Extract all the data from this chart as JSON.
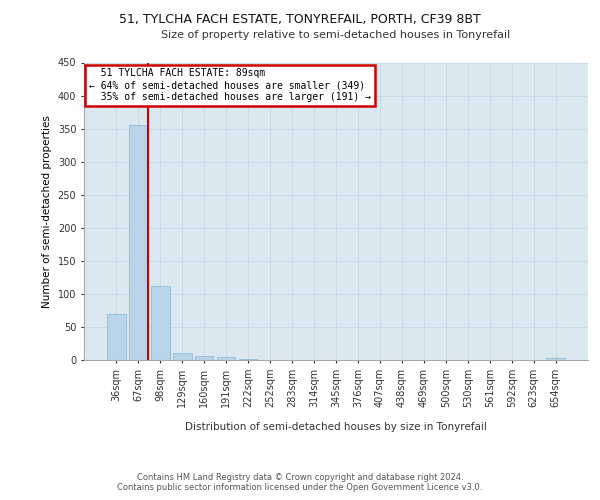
{
  "title": "51, TYLCHA FACH ESTATE, TONYREFAIL, PORTH, CF39 8BT",
  "subtitle": "Size of property relative to semi-detached houses in Tonyrefail",
  "xlabel": "Distribution of semi-detached houses by size in Tonyrefail",
  "ylabel": "Number of semi-detached properties",
  "categories": [
    "36sqm",
    "67sqm",
    "98sqm",
    "129sqm",
    "160sqm",
    "191sqm",
    "222sqm",
    "252sqm",
    "283sqm",
    "314sqm",
    "345sqm",
    "376sqm",
    "407sqm",
    "438sqm",
    "469sqm",
    "500sqm",
    "530sqm",
    "561sqm",
    "592sqm",
    "623sqm",
    "654sqm"
  ],
  "values": [
    70,
    355,
    112,
    11,
    6,
    4,
    1,
    0,
    0,
    0,
    0,
    0,
    0,
    0,
    0,
    0,
    0,
    0,
    0,
    0,
    3
  ],
  "bar_color": "#b8d4e8",
  "bar_edge_color": "#8ab4d0",
  "property_bin_index": 1,
  "property_label": "51 TYLCHA FACH ESTATE: 89sqm",
  "smaller_pct": 64,
  "smaller_count": 349,
  "larger_pct": 35,
  "larger_count": 191,
  "annotation_box_color": "#cc0000",
  "vline_color": "#cc0000",
  "ylim": [
    0,
    450
  ],
  "yticks": [
    0,
    50,
    100,
    150,
    200,
    250,
    300,
    350,
    400,
    450
  ],
  "background_color": "#ffffff",
  "grid_color": "#c8d8e8",
  "footer_line1": "Contains HM Land Registry data © Crown copyright and database right 2024.",
  "footer_line2": "Contains public sector information licensed under the Open Government Licence v3.0."
}
